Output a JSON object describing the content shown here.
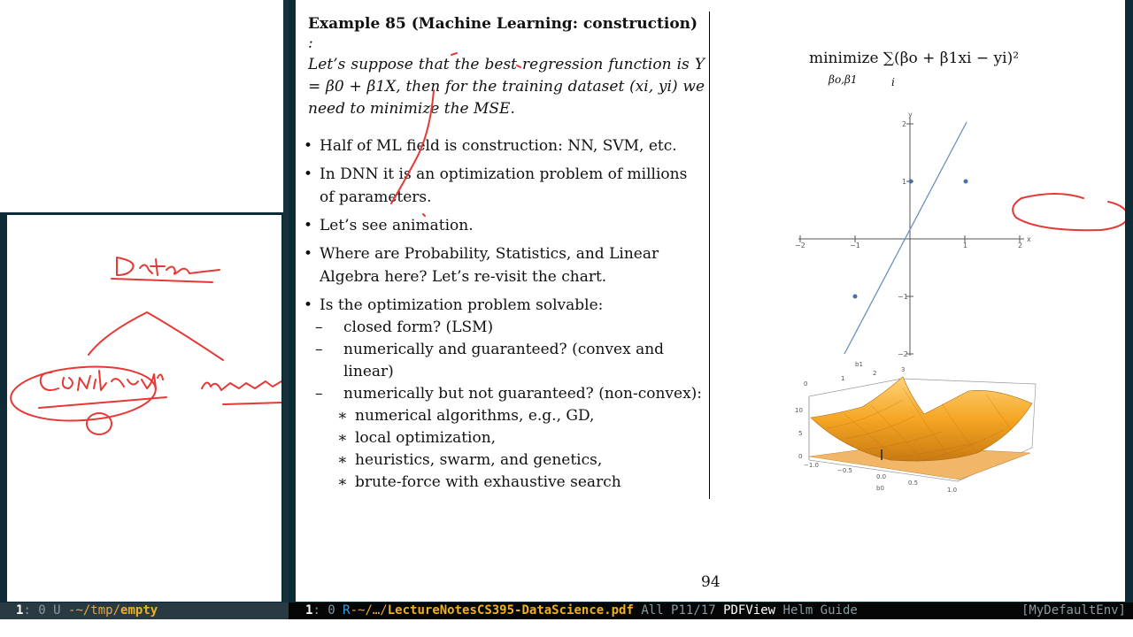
{
  "document": {
    "example_title": "Example 85 (Machine Learning: construction)",
    "example_colon": ":",
    "example_body": "Let’s suppose that the best regression function is Y = β0 + β1X, then for the training dataset (xi, yi) we need to minimize the MSE.",
    "bullets": [
      "Half of ML field is construction: NN, SVM, etc.",
      "In DNN it is an optimization problem of millions of parameters.",
      "Let’s see animation.",
      "Where are Probability, Statistics, and Linear Algebra here? Let’s re-visit the chart.",
      "Is the optimization problem solvable:"
    ],
    "sub_items": [
      "closed form? (LSM)",
      "numerically and guaranteed? (convex and linear)",
      "numerically but not guaranteed? (non-convex):"
    ],
    "sub_sub_items": [
      "numerical algorithms, e.g., GD,",
      "local optimization,",
      "heuristics, swarm, and genetics,",
      "brute-force with exhaustive search"
    ],
    "bullet_glyph": "•",
    "dash_glyph": "–",
    "star_glyph": "∗",
    "formula_main": "minimize ∑(βo + β1xi − yi)²",
    "formula_sub_params": "βo,β1",
    "formula_sub_index": "i",
    "page_number": "94"
  },
  "scatter_plot": {
    "axis_x_label": "x",
    "axis_y_label": "y",
    "x_ticks": [
      "−2",
      "−1",
      "1",
      "2"
    ],
    "y_ticks": [
      "2",
      "1",
      "−1",
      "−2"
    ],
    "points": [
      [
        0,
        1
      ],
      [
        1,
        1
      ],
      [
        -1,
        -1
      ]
    ],
    "line_slope": 1.5,
    "line_intercept": 0,
    "point_color": "#4a6fa5",
    "line_color": "#6c8fbf"
  },
  "surface_plot": {
    "axis_b0_label": "b0",
    "axis_b1_label": "b1",
    "b0_ticks": [
      "−1.0",
      "−0.5",
      "0.0",
      "0.5",
      "1.0"
    ],
    "b1_ticks": [
      "0",
      "1",
      "2",
      "3"
    ],
    "z_ticks": [
      "0",
      "5",
      "10"
    ],
    "surface_color": "#f5a623"
  },
  "whiteboard": {
    "ink_color": "#e53935"
  },
  "status_left": {
    "buffer_num": "1",
    "info": ": 0 U ",
    "path": "-~/tmp/",
    "file": "empty"
  },
  "status_right": {
    "buffer_num": "1",
    "info": ": 0  ",
    "r_flag": "R",
    "path": "-~/…/",
    "file": "LectureNotesCS395-DataScience.pdf",
    "position": "All P11/17",
    "mode": "PDFView",
    "minor_modes": "Helm Guide",
    "env": "[MyDefaultEnv]"
  }
}
